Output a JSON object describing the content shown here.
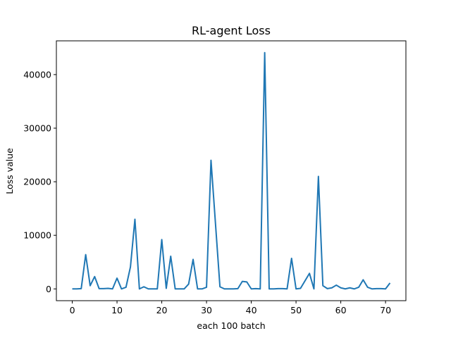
{
  "chart_data": {
    "type": "line",
    "title": "RL-agent Loss",
    "xlabel": "each 100 batch",
    "ylabel": "Loss value",
    "xlim": [
      -3.55,
      74.55
    ],
    "ylim": [
      -2200,
      46300
    ],
    "xticks": [
      0,
      10,
      20,
      30,
      40,
      50,
      60,
      70
    ],
    "yticks": [
      0,
      10000,
      20000,
      30000,
      40000
    ],
    "grid": false,
    "line_color": "#1f77b4",
    "series": [
      {
        "x": [
          0,
          1,
          2,
          3,
          4,
          5,
          6,
          7,
          8,
          9,
          10,
          11,
          12,
          13,
          14,
          15,
          16,
          17,
          18,
          19,
          20,
          21,
          22,
          23,
          24,
          25,
          26,
          27,
          28,
          29,
          30,
          31,
          32,
          33,
          34,
          35,
          36,
          37,
          38,
          39,
          40,
          41,
          42,
          43,
          44,
          45,
          46,
          47,
          48,
          49,
          50,
          51,
          52,
          53,
          54,
          55,
          56,
          57,
          58,
          59,
          60,
          61,
          62,
          63,
          64,
          65,
          66,
          67,
          68,
          69,
          70,
          71
        ],
        "values": [
          0,
          0,
          50,
          6400,
          600,
          2300,
          50,
          50,
          100,
          0,
          2000,
          0,
          300,
          4100,
          13000,
          0,
          400,
          0,
          0,
          0,
          9200,
          100,
          6100,
          0,
          0,
          0,
          900,
          5500,
          0,
          0,
          300,
          24000,
          12200,
          400,
          0,
          0,
          0,
          50,
          1400,
          1300,
          0,
          50,
          0,
          44100,
          0,
          0,
          50,
          50,
          0,
          5700,
          0,
          100,
          1500,
          2900,
          0,
          21000,
          600,
          50,
          200,
          700,
          200,
          0,
          200,
          0,
          300,
          1700,
          300,
          0,
          50,
          50,
          0,
          1100
        ]
      }
    ]
  }
}
